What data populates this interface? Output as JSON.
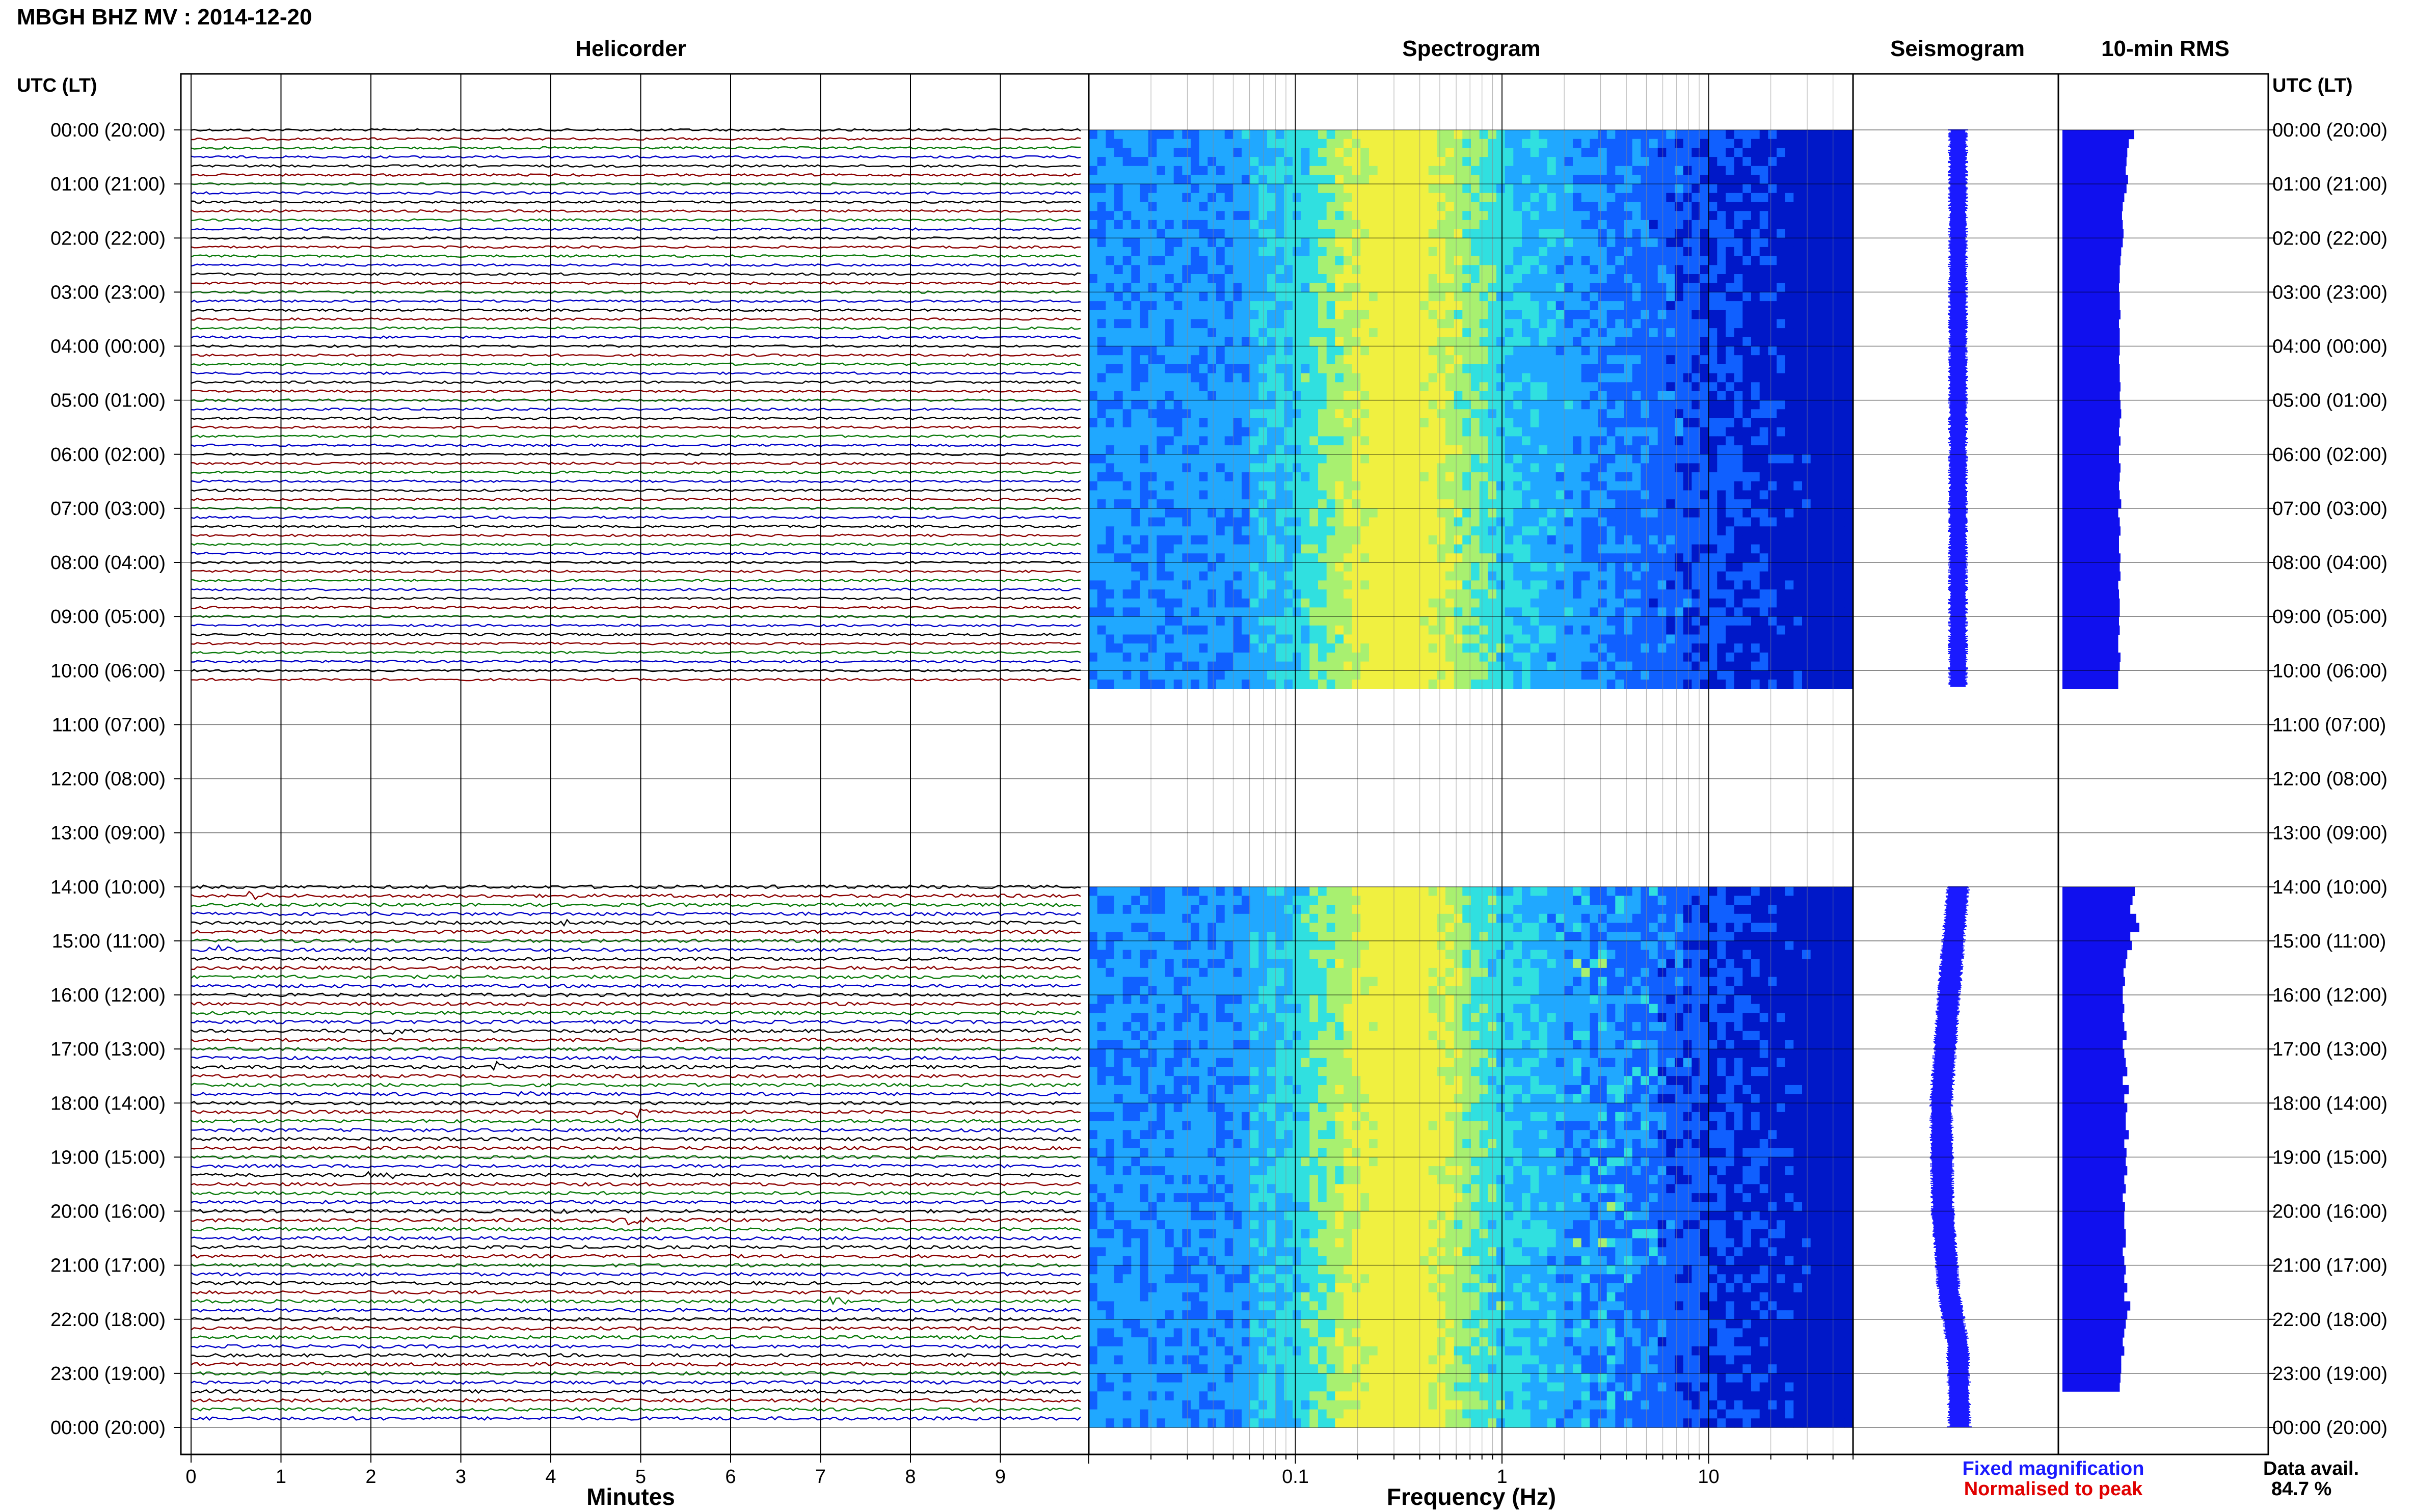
{
  "header": {
    "station_title": "MBGH BHZ MV : 2014-12-20"
  },
  "panels": {
    "helicorder": "Helicorder",
    "spectrogram": "Spectrogram",
    "seismogram": "Seismogram",
    "rms": "10-min RMS"
  },
  "axis_labels": {
    "time_left": "UTC (LT)",
    "time_right": "UTC (LT)",
    "minutes": "Minutes",
    "frequency": "Frequency (Hz)"
  },
  "legend": {
    "fixed": "Fixed magnification",
    "normalised": "Normalised to peak",
    "fixed_color": "#1a1aff",
    "normalised_color": "#e00000",
    "data_avail_label": "Data avail.",
    "data_avail_value": "84.7 %"
  },
  "colors": {
    "helicorder_traces": [
      "#000000",
      "#8b0000",
      "#0a7a0a",
      "#0000c8"
    ],
    "seismogram": "#1a1aff",
    "rms_bars": "#1010ee",
    "spectrogram_ramp": [
      "#0018c8",
      "#1060ff",
      "#20a8ff",
      "#30e0e0",
      "#a8f070",
      "#f0f040"
    ]
  },
  "chart_data": {
    "type": "heatmap",
    "date": "2014-12-20",
    "time_ticks": [
      "00:00 (20:00)",
      "01:00 (21:00)",
      "02:00 (22:00)",
      "03:00 (23:00)",
      "04:00 (00:00)",
      "05:00 (01:00)",
      "06:00 (02:00)",
      "07:00 (03:00)",
      "08:00 (04:00)",
      "09:00 (05:00)",
      "10:00 (06:00)",
      "11:00 (07:00)",
      "12:00 (08:00)",
      "13:00 (09:00)",
      "14:00 (10:00)",
      "15:00 (11:00)",
      "16:00 (12:00)",
      "17:00 (13:00)",
      "18:00 (14:00)",
      "19:00 (15:00)",
      "20:00 (16:00)",
      "21:00 (17:00)",
      "22:00 (18:00)",
      "23:00 (19:00)",
      "00:00 (20:00)"
    ],
    "minutes_ticks": [
      "0",
      "1",
      "2",
      "3",
      "4",
      "5",
      "6",
      "7",
      "8",
      "9"
    ],
    "minutes_range": [
      0,
      10
    ],
    "frequency_ticks": [
      {
        "label": "0.1",
        "value": 0.1
      },
      {
        "label": "1",
        "value": 1
      },
      {
        "label": "10",
        "value": 10
      }
    ],
    "frequency_range": [
      0.01,
      50
    ],
    "frequency_scale": "log",
    "rows_per_hour": 6,
    "data_gaps_utc_hours": [
      [
        10.3,
        14.0
      ]
    ],
    "events_helicorder": [
      {
        "hour": 14.1,
        "minute": 0.7
      },
      {
        "hour": 14.6,
        "minute": 4.2
      },
      {
        "hour": 15.1,
        "minute": 0.3
      },
      {
        "hour": 17.4,
        "minute": 3.4
      },
      {
        "hour": 16.7,
        "minute": 2.3
      },
      {
        "hour": 17.8,
        "minute": 3.8
      },
      {
        "hour": 20.0,
        "minute": 4.2
      },
      {
        "hour": 20.1,
        "minute": 4.9
      },
      {
        "hour": 21.7,
        "minute": 7.2
      },
      {
        "hour": 19.3,
        "minute": 2.1
      },
      {
        "hour": 18.2,
        "minute": 5.0
      },
      {
        "hour": 22.4,
        "minute": 2.6
      }
    ],
    "seismogram_trend_hours": [
      0,
      4,
      8,
      10.3,
      14,
      16,
      18,
      20,
      21.5,
      22.5,
      24
    ],
    "seismogram_trend_offset": [
      0.0,
      0.0,
      0.0,
      0.0,
      0.0,
      -0.6,
      -1.1,
      -1.0,
      -0.6,
      0.0,
      0.1
    ],
    "rms_values_upper": [
      0.95,
      0.88,
      0.86,
      0.85,
      0.84,
      0.87,
      0.85,
      0.82,
      0.8,
      0.79,
      0.8,
      0.81,
      0.8,
      0.78,
      0.77,
      0.76,
      0.76,
      0.75,
      0.76,
      0.76,
      0.77,
      0.75,
      0.76,
      0.76,
      0.76,
      0.75,
      0.76,
      0.76,
      0.77,
      0.76,
      0.77,
      0.78,
      0.76,
      0.75,
      0.77,
      0.75,
      0.75,
      0.77,
      0.76,
      0.75,
      0.76,
      0.78,
      0.74,
      0.76,
      0.77,
      0.75,
      0.75,
      0.77,
      0.76,
      0.77,
      0.74,
      0.75,
      0.76,
      0.76,
      0.75,
      0.76,
      0.74,
      0.74,
      0.77,
      0.76,
      0.74,
      0.74
    ],
    "rms_values_lower": [
      0.96,
      0.93,
      0.9,
      0.98,
      1.02,
      0.9,
      0.92,
      0.86,
      0.84,
      0.81,
      0.83,
      0.8,
      0.8,
      0.82,
      0.8,
      0.82,
      0.85,
      0.8,
      0.82,
      0.84,
      0.86,
      0.8,
      0.88,
      0.82,
      0.86,
      0.84,
      0.84,
      0.88,
      0.82,
      0.85,
      0.84,
      0.86,
      0.82,
      0.84,
      0.8,
      0.83,
      0.82,
      0.82,
      0.84,
      0.84,
      0.8,
      0.82,
      0.84,
      0.82,
      0.86,
      0.82,
      0.9,
      0.86,
      0.84,
      0.82,
      0.8,
      0.82,
      0.78,
      0.78,
      0.77,
      0.76
    ]
  }
}
